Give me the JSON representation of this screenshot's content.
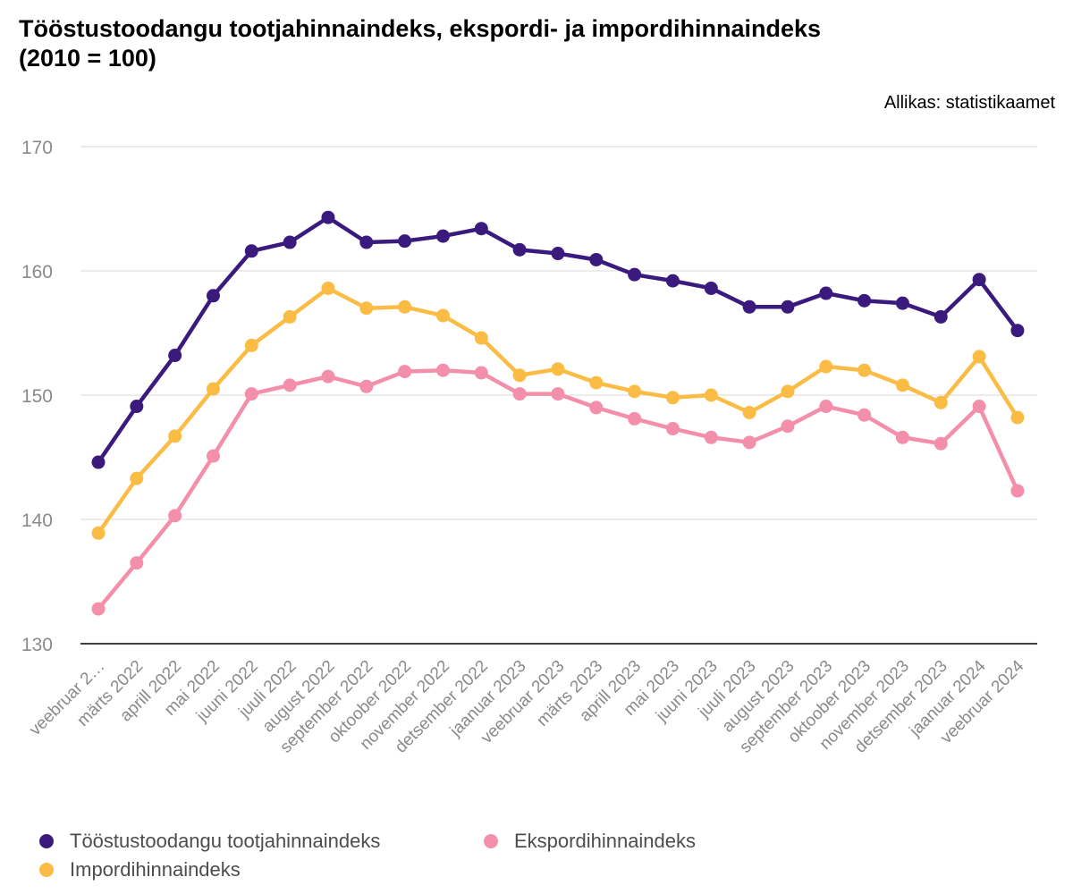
{
  "title_line1": "Tööstustoodangu tootjahinnaindeks, ekspordi- ja impordihinnaindeks",
  "title_line2": "(2010 = 100)",
  "source": "Allikas: statistikaamet",
  "chart_data": {
    "type": "line",
    "categories": [
      "veebruar 2…",
      "märts 2022",
      "aprill 2022",
      "mai 2022",
      "juuni 2022",
      "juuli 2022",
      "august 2022",
      "september 2022",
      "oktoober 2022",
      "november 2022",
      "detsember 2022",
      "jaanuar 2023",
      "veebruar 2023",
      "märts 2023",
      "aprill 2023",
      "mai 2023",
      "juuni 2023",
      "juuli 2023",
      "august 2023",
      "september 2023",
      "oktoober 2023",
      "november 2023",
      "detsember 2023",
      "jaanuar 2024",
      "veebruar 2024"
    ],
    "yticks": [
      130,
      140,
      150,
      160,
      170
    ],
    "ylim": [
      130,
      170
    ],
    "grid": true,
    "legend_position": "bottom",
    "series": [
      {
        "name": "Tööstustoodangu tootjahinnaindeks",
        "color": "#3b1a7e",
        "values": [
          144.6,
          149.1,
          153.2,
          158.0,
          161.6,
          162.3,
          164.3,
          162.3,
          162.4,
          162.8,
          163.4,
          161.7,
          161.4,
          160.9,
          159.7,
          159.2,
          158.6,
          157.1,
          157.1,
          158.2,
          157.6,
          157.4,
          156.3,
          159.3,
          155.2
        ]
      },
      {
        "name": "Impordihinnaindeks",
        "color": "#fbbc45",
        "values": [
          138.9,
          143.3,
          146.7,
          150.5,
          154.0,
          156.3,
          158.6,
          157.0,
          157.1,
          156.4,
          154.6,
          151.6,
          152.1,
          151.0,
          150.3,
          149.8,
          150.0,
          148.6,
          150.3,
          152.3,
          152.0,
          150.8,
          149.4,
          153.1,
          148.2
        ]
      },
      {
        "name": "Ekspordihinnaindeks",
        "color": "#f48fab",
        "values": [
          132.8,
          136.5,
          140.3,
          145.1,
          150.1,
          150.8,
          151.5,
          150.7,
          151.9,
          152.0,
          151.8,
          150.1,
          150.1,
          149.0,
          148.1,
          147.3,
          146.6,
          146.2,
          147.5,
          149.1,
          148.4,
          146.6,
          146.1,
          149.1,
          142.3
        ]
      }
    ]
  }
}
